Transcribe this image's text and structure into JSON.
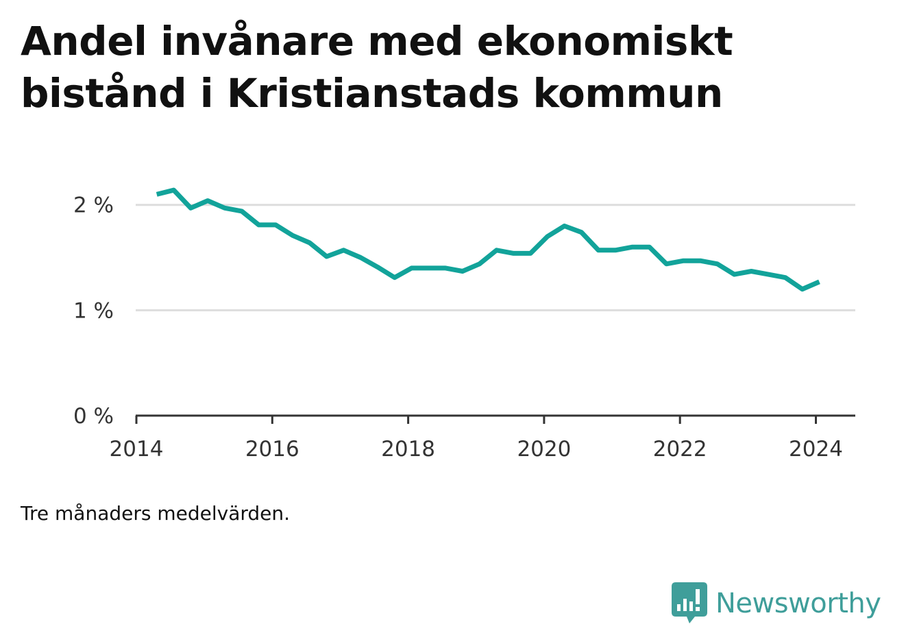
{
  "title": "Andel invånare med ekonomiskt bistånd i Kristianstads kommun",
  "note": "Tre månaders medelvärden.",
  "brand": {
    "name": "Newsworthy",
    "icon": "newsworthy-logo-icon",
    "color": "#3f9e9a"
  },
  "chart_data": {
    "type": "line",
    "title": "Andel invånare med ekonomiskt bistånd i Kristianstads kommun",
    "xlabel": "",
    "ylabel": "",
    "xlim": [
      2013.99,
      2024.58
    ],
    "ylim": [
      0,
      2.2
    ],
    "grid": true,
    "line_color": "#12a39a",
    "x_ticks": [
      {
        "value": 2014,
        "label": "2014"
      },
      {
        "value": 2016,
        "label": "2016"
      },
      {
        "value": 2018,
        "label": "2018"
      },
      {
        "value": 2020,
        "label": "2020"
      },
      {
        "value": 2022,
        "label": "2022"
      },
      {
        "value": 2024,
        "label": "2024"
      }
    ],
    "y_ticks": [
      {
        "value": 0,
        "label": "0 %"
      },
      {
        "value": 1,
        "label": "1 %"
      },
      {
        "value": 2,
        "label": "2 %"
      }
    ],
    "series": [
      {
        "x": [
          2014.3,
          2014.55,
          2014.8,
          2015.05,
          2015.3,
          2015.55,
          2015.8,
          2016.05,
          2016.3,
          2016.55,
          2016.8,
          2017.05,
          2017.3,
          2017.55,
          2017.8,
          2018.05,
          2018.3,
          2018.55,
          2018.8,
          2019.05,
          2019.3,
          2019.55,
          2019.8,
          2020.05,
          2020.3,
          2020.55,
          2020.8,
          2021.05,
          2021.3,
          2021.55,
          2021.8,
          2022.05,
          2022.3,
          2022.55,
          2022.8,
          2023.05,
          2023.3,
          2023.55,
          2023.8,
          2024.05
        ],
        "values": [
          2.1,
          2.14,
          1.97,
          2.04,
          1.97,
          1.94,
          1.81,
          1.81,
          1.71,
          1.64,
          1.51,
          1.57,
          1.5,
          1.41,
          1.31,
          1.4,
          1.4,
          1.4,
          1.37,
          1.44,
          1.57,
          1.54,
          1.54,
          1.7,
          1.8,
          1.74,
          1.57,
          1.57,
          1.6,
          1.6,
          1.44,
          1.47,
          1.47,
          1.44,
          1.34,
          1.37,
          1.34,
          1.31,
          1.2,
          1.27
        ]
      }
    ]
  }
}
